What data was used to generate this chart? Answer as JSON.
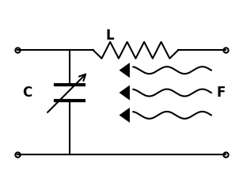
{
  "bg_color": "#ffffff",
  "line_color": "#000000",
  "lw": 1.5,
  "label_C": "C",
  "label_L": "L",
  "label_F": "F",
  "fig_width": 3.07,
  "fig_height": 2.31,
  "dpi": 100
}
